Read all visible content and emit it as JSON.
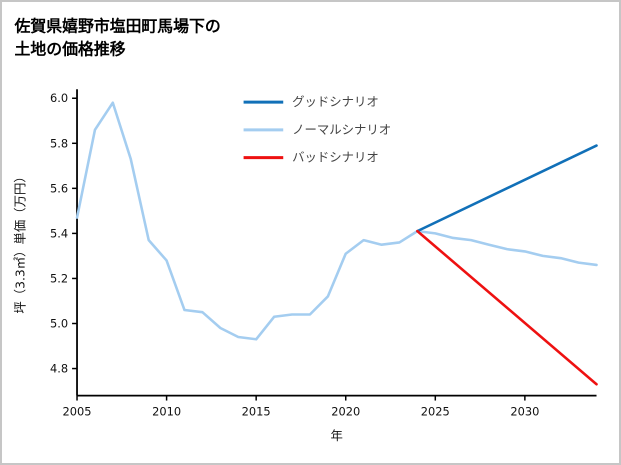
{
  "chart_data": {
    "type": "line",
    "title": "佐賀県嬉野市塩田町馬場下の 土地の価格推移",
    "title_lines": [
      "佐賀県嬉野市塩田町馬場下の",
      "土地の価格推移"
    ],
    "xlabel": "年",
    "ylabel": "坪（3.3㎡）単価（万円）",
    "xlim": [
      2005,
      2034
    ],
    "ylim": [
      4.68,
      6.04
    ],
    "xticks": [
      2005,
      2010,
      2015,
      2020,
      2025,
      2030
    ],
    "yticks": [
      4.8,
      5.0,
      5.2,
      5.4,
      5.6,
      5.8,
      6.0
    ],
    "grid": false,
    "legend_position": "upper-center-inside",
    "series": [
      {
        "name": "グッドシナリオ",
        "color": "#1170b8",
        "x": [
          2024,
          2034
        ],
        "values": [
          5.41,
          5.79
        ]
      },
      {
        "name": "ノーマルシナリオ",
        "color": "#a4cdf0",
        "x": [
          2005,
          2006,
          2007,
          2008,
          2009,
          2010,
          2011,
          2012,
          2013,
          2014,
          2015,
          2016,
          2017,
          2018,
          2019,
          2020,
          2021,
          2022,
          2023,
          2024,
          2025,
          2026,
          2027,
          2028,
          2029,
          2030,
          2031,
          2032,
          2033,
          2034
        ],
        "values": [
          5.47,
          5.86,
          5.98,
          5.73,
          5.37,
          5.28,
          5.06,
          5.05,
          4.98,
          4.94,
          4.93,
          5.03,
          5.04,
          5.04,
          5.12,
          5.31,
          5.37,
          5.35,
          5.36,
          5.41,
          5.4,
          5.38,
          5.37,
          5.35,
          5.33,
          5.32,
          5.3,
          5.29,
          5.27,
          5.26
        ]
      },
      {
        "name": "バッドシナリオ",
        "color": "#ee1111",
        "x": [
          2024,
          2034
        ],
        "values": [
          5.41,
          4.73
        ]
      }
    ]
  }
}
